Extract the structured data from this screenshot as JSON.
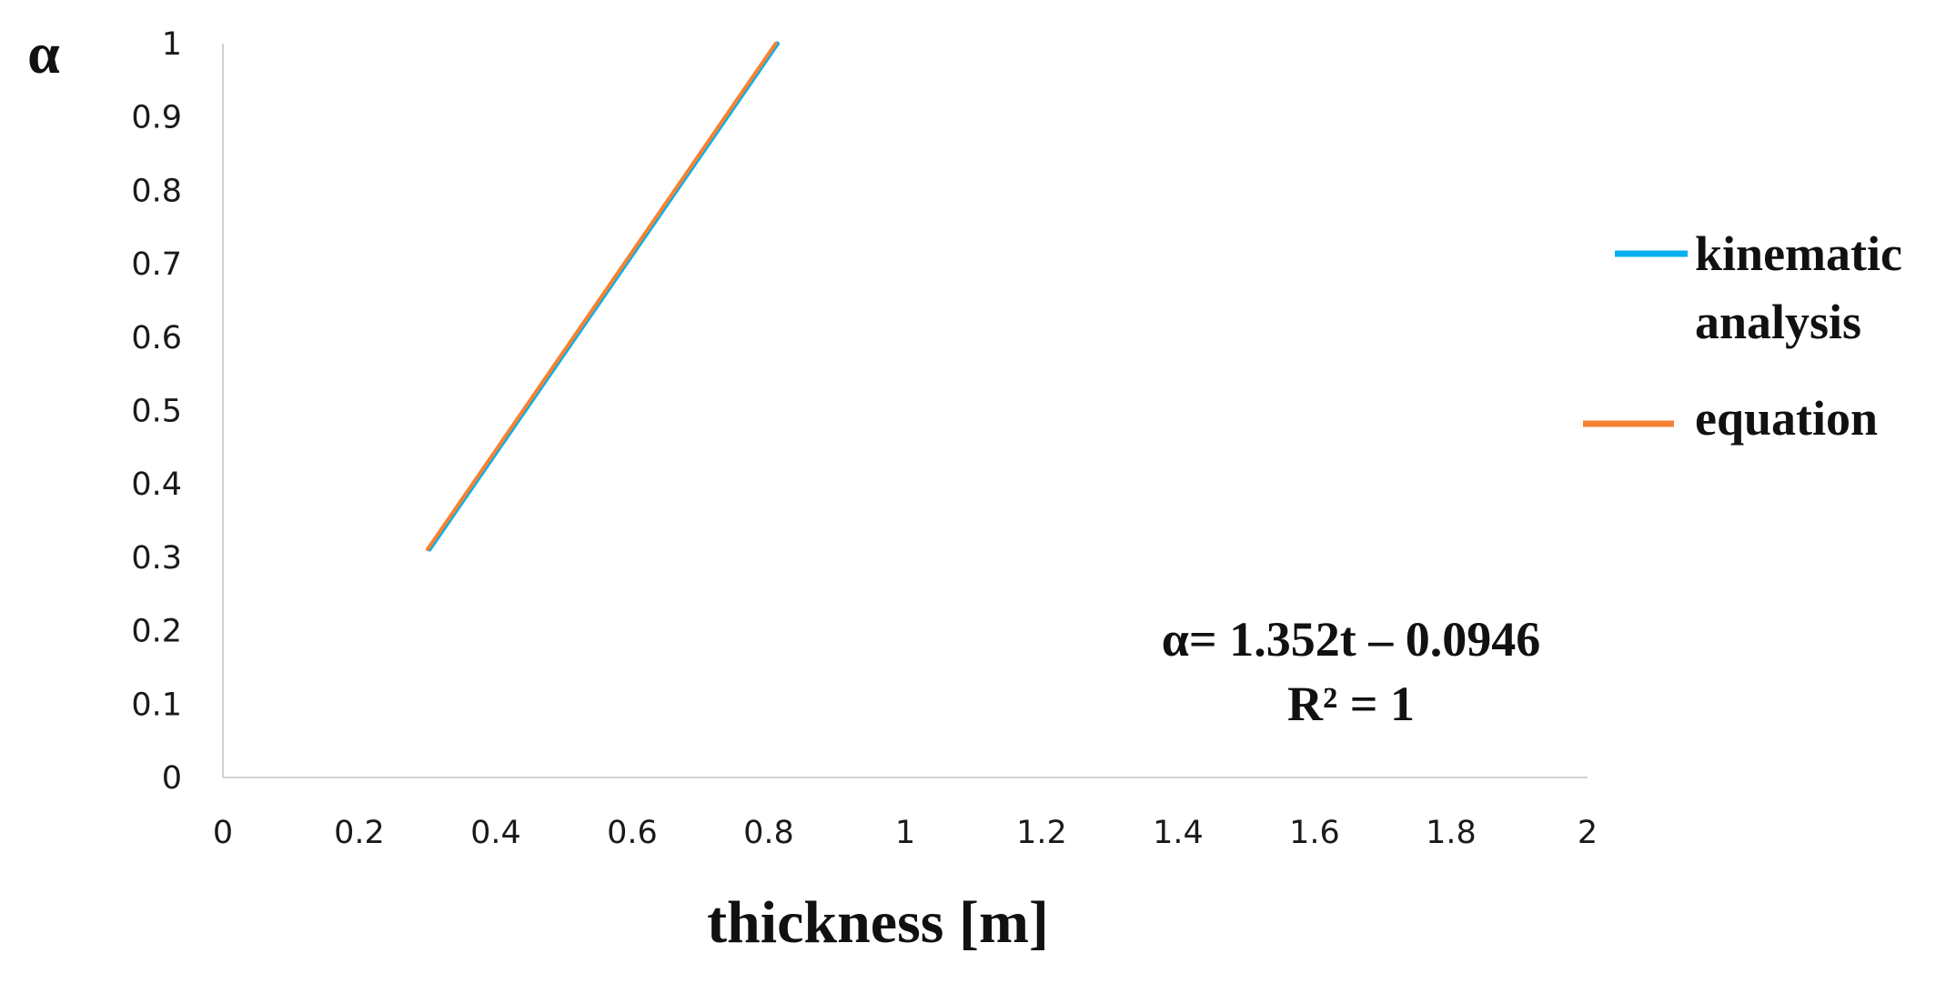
{
  "chart_data": {
    "type": "line",
    "xlabel": "thickness [m]",
    "ylabel": "α",
    "xlim": [
      0,
      2
    ],
    "ylim": [
      0,
      1
    ],
    "x_ticks": [
      "0",
      "0.2",
      "0.4",
      "0.6",
      "0.8",
      "1",
      "1.2",
      "1.4",
      "1.6",
      "1.8",
      "2"
    ],
    "y_ticks": [
      "0",
      "0.1",
      "0.2",
      "0.3",
      "0.4",
      "0.5",
      "0.6",
      "0.7",
      "0.8",
      "0.9",
      "1"
    ],
    "grid": false,
    "legend_position": "right",
    "series": [
      {
        "name": "kinematic analysis",
        "legend_lines": [
          "kinematic",
          "analysis"
        ],
        "color": "#00b0f0",
        "x": [
          0.3,
          0.81
        ],
        "y": [
          0.311,
          1.0
        ]
      },
      {
        "name": "equation",
        "legend_lines": [
          "equation"
        ],
        "color": "#f58233",
        "x": [
          0.3,
          0.81
        ],
        "y": [
          0.311,
          1.0
        ]
      }
    ],
    "annotations": {
      "equation": "α= 1.352t – 0.0946",
      "r_squared": "R² = 1"
    }
  }
}
